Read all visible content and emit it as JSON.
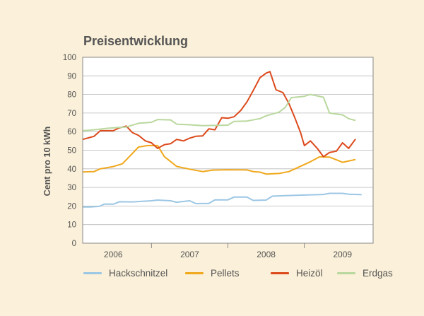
{
  "chart_data": {
    "type": "line",
    "title": "Preisentwicklung",
    "ylabel": "Cent pro 10 kWh",
    "xlabel": "",
    "ylim": [
      0,
      100
    ],
    "yticks": [
      0,
      10,
      20,
      30,
      40,
      50,
      60,
      70,
      80,
      90,
      100
    ],
    "xlim": [
      2005.6,
      2009.4
    ],
    "categories": [
      "2006",
      "2007",
      "2008",
      "2009"
    ],
    "grid": true,
    "legend": "bottom",
    "series": [
      {
        "name": "Hackschnitzel",
        "color": "#9cc7e4",
        "points": [
          [
            2005.6,
            19.5
          ],
          [
            2005.7,
            19.5
          ],
          [
            2005.82,
            19.8
          ],
          [
            2005.88,
            21
          ],
          [
            2006.0,
            21
          ],
          [
            2006.08,
            22.3
          ],
          [
            2006.25,
            22.2
          ],
          [
            2006.5,
            22.8
          ],
          [
            2006.58,
            23.2
          ],
          [
            2006.75,
            22.8
          ],
          [
            2006.83,
            22
          ],
          [
            2007.0,
            22.8
          ],
          [
            2007.08,
            21.3
          ],
          [
            2007.25,
            21.4
          ],
          [
            2007.33,
            23.3
          ],
          [
            2007.5,
            23.3
          ],
          [
            2007.58,
            24.8
          ],
          [
            2007.75,
            24.8
          ],
          [
            2007.83,
            23
          ],
          [
            2008.0,
            23.2
          ],
          [
            2008.08,
            25.3
          ],
          [
            2008.25,
            25.6
          ],
          [
            2008.5,
            25.9
          ],
          [
            2008.75,
            26.2
          ],
          [
            2008.83,
            26.8
          ],
          [
            2009.0,
            26.8
          ],
          [
            2009.08,
            26.3
          ],
          [
            2009.25,
            26.1
          ]
        ]
      },
      {
        "name": "Pellets",
        "color": "#f0a81c",
        "points": [
          [
            2005.6,
            38.3
          ],
          [
            2005.75,
            38.5
          ],
          [
            2005.83,
            40
          ],
          [
            2006.0,
            41.2
          ],
          [
            2006.12,
            42.7
          ],
          [
            2006.22,
            47
          ],
          [
            2006.33,
            51.7
          ],
          [
            2006.45,
            52.5
          ],
          [
            2006.58,
            52.5
          ],
          [
            2006.67,
            46.5
          ],
          [
            2006.83,
            41.3
          ],
          [
            2007.0,
            39.8
          ],
          [
            2007.17,
            38.5
          ],
          [
            2007.3,
            39.3
          ],
          [
            2007.5,
            39.5
          ],
          [
            2007.75,
            39.4
          ],
          [
            2007.83,
            38.5
          ],
          [
            2007.92,
            38.2
          ],
          [
            2008.0,
            37.2
          ],
          [
            2008.17,
            37.5
          ],
          [
            2008.3,
            38.5
          ],
          [
            2008.42,
            40.8
          ],
          [
            2008.58,
            43.8
          ],
          [
            2008.7,
            46.5
          ],
          [
            2008.83,
            46.3
          ],
          [
            2009.0,
            43.5
          ],
          [
            2009.17,
            45
          ]
        ]
      },
      {
        "name": "Heizöl",
        "color": "#dc4a1c",
        "points": [
          [
            2005.6,
            55.8
          ],
          [
            2005.75,
            57.5
          ],
          [
            2005.83,
            60.5
          ],
          [
            2006.0,
            60.5
          ],
          [
            2006.08,
            62
          ],
          [
            2006.17,
            63
          ],
          [
            2006.25,
            59.5
          ],
          [
            2006.33,
            58
          ],
          [
            2006.42,
            55
          ],
          [
            2006.5,
            54
          ],
          [
            2006.58,
            51
          ],
          [
            2006.67,
            53
          ],
          [
            2006.75,
            53.5
          ],
          [
            2006.83,
            55.8
          ],
          [
            2006.92,
            55
          ],
          [
            2007.0,
            56.5
          ],
          [
            2007.08,
            57.5
          ],
          [
            2007.17,
            57.7
          ],
          [
            2007.25,
            61.5
          ],
          [
            2007.33,
            61
          ],
          [
            2007.42,
            67.5
          ],
          [
            2007.5,
            67.2
          ],
          [
            2007.58,
            68
          ],
          [
            2007.67,
            71.5
          ],
          [
            2007.75,
            76
          ],
          [
            2007.83,
            82
          ],
          [
            2007.92,
            89
          ],
          [
            2008.0,
            91.5
          ],
          [
            2008.05,
            92.3
          ],
          [
            2008.13,
            82.5
          ],
          [
            2008.22,
            81
          ],
          [
            2008.3,
            75
          ],
          [
            2008.38,
            67
          ],
          [
            2008.45,
            59.5
          ],
          [
            2008.5,
            52.5
          ],
          [
            2008.58,
            55
          ],
          [
            2008.67,
            51
          ],
          [
            2008.75,
            46.5
          ],
          [
            2008.83,
            48.8
          ],
          [
            2008.92,
            49.5
          ],
          [
            2009.0,
            54
          ],
          [
            2009.08,
            51
          ],
          [
            2009.17,
            56
          ]
        ]
      },
      {
        "name": "Erdgas",
        "color": "#b9d89e",
        "points": [
          [
            2005.6,
            60.5
          ],
          [
            2005.75,
            61
          ],
          [
            2005.92,
            61.8
          ],
          [
            2006.08,
            62.3
          ],
          [
            2006.17,
            62.5
          ],
          [
            2006.33,
            64.5
          ],
          [
            2006.5,
            65
          ],
          [
            2006.58,
            66.5
          ],
          [
            2006.75,
            66.3
          ],
          [
            2006.83,
            64
          ],
          [
            2007.0,
            63.7
          ],
          [
            2007.17,
            63.2
          ],
          [
            2007.5,
            63.5
          ],
          [
            2007.58,
            65.5
          ],
          [
            2007.75,
            65.7
          ],
          [
            2007.92,
            67
          ],
          [
            2008.0,
            68.5
          ],
          [
            2008.17,
            70.5
          ],
          [
            2008.25,
            73
          ],
          [
            2008.33,
            78.3
          ],
          [
            2008.5,
            79
          ],
          [
            2008.58,
            80
          ],
          [
            2008.75,
            78.5
          ],
          [
            2008.83,
            70
          ],
          [
            2009.0,
            69
          ],
          [
            2009.08,
            67
          ],
          [
            2009.17,
            66
          ]
        ]
      }
    ]
  }
}
